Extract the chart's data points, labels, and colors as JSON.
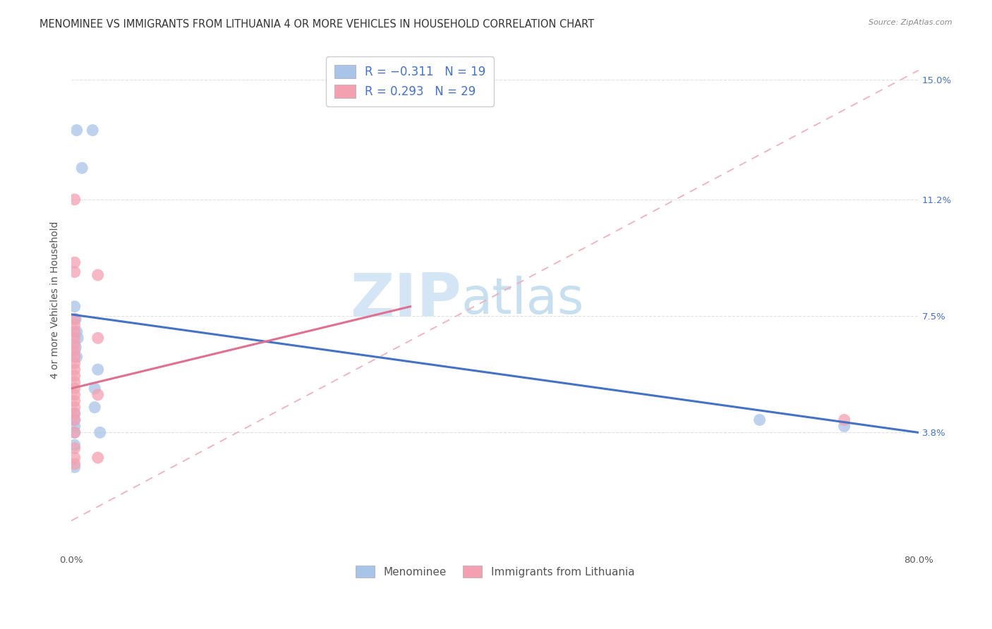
{
  "title": "MENOMINEE VS IMMIGRANTS FROM LITHUANIA 4 OR MORE VEHICLES IN HOUSEHOLD CORRELATION CHART",
  "source": "Source: ZipAtlas.com",
  "ylabel": "4 or more Vehicles in Household",
  "xlim": [
    0.0,
    0.8
  ],
  "ylim": [
    0.0,
    0.16
  ],
  "xticks": [
    0.0,
    0.1,
    0.2,
    0.3,
    0.4,
    0.5,
    0.6,
    0.7,
    0.8
  ],
  "yticks_right": [
    0.038,
    0.075,
    0.112,
    0.15
  ],
  "ytick_labels_right": [
    "3.8%",
    "7.5%",
    "11.2%",
    "15.0%"
  ],
  "blue_color": "#a8c4e8",
  "blue_line_color": "#4472c4",
  "pink_color": "#f4a0b0",
  "pink_line_color": "#e07090",
  "pink_dash_color": "#f0b0bc",
  "blue_points": [
    [
      0.005,
      0.134
    ],
    [
      0.02,
      0.134
    ],
    [
      0.01,
      0.122
    ],
    [
      0.003,
      0.078
    ],
    [
      0.004,
      0.074
    ],
    [
      0.005,
      0.07
    ],
    [
      0.006,
      0.068
    ],
    [
      0.004,
      0.065
    ],
    [
      0.005,
      0.062
    ],
    [
      0.025,
      0.058
    ],
    [
      0.022,
      0.052
    ],
    [
      0.022,
      0.046
    ],
    [
      0.003,
      0.044
    ],
    [
      0.003,
      0.042
    ],
    [
      0.003,
      0.04
    ],
    [
      0.003,
      0.038
    ],
    [
      0.027,
      0.038
    ],
    [
      0.003,
      0.034
    ],
    [
      0.003,
      0.027
    ],
    [
      0.65,
      0.042
    ],
    [
      0.73,
      0.04
    ]
  ],
  "pink_points": [
    [
      0.003,
      0.112
    ],
    [
      0.003,
      0.092
    ],
    [
      0.003,
      0.089
    ],
    [
      0.025,
      0.088
    ],
    [
      0.003,
      0.074
    ],
    [
      0.003,
      0.072
    ],
    [
      0.003,
      0.07
    ],
    [
      0.003,
      0.068
    ],
    [
      0.003,
      0.066
    ],
    [
      0.003,
      0.064
    ],
    [
      0.003,
      0.062
    ],
    [
      0.003,
      0.06
    ],
    [
      0.003,
      0.058
    ],
    [
      0.003,
      0.056
    ],
    [
      0.003,
      0.054
    ],
    [
      0.003,
      0.052
    ],
    [
      0.003,
      0.05
    ],
    [
      0.003,
      0.048
    ],
    [
      0.003,
      0.046
    ],
    [
      0.003,
      0.044
    ],
    [
      0.003,
      0.042
    ],
    [
      0.003,
      0.038
    ],
    [
      0.025,
      0.068
    ],
    [
      0.025,
      0.05
    ],
    [
      0.73,
      0.042
    ],
    [
      0.003,
      0.033
    ],
    [
      0.003,
      0.03
    ],
    [
      0.003,
      0.028
    ],
    [
      0.025,
      0.03
    ]
  ],
  "blue_line": {
    "x": [
      0.0,
      0.8
    ],
    "y": [
      0.0755,
      0.038
    ]
  },
  "pink_line": {
    "x": [
      0.0,
      0.32
    ],
    "y": [
      0.052,
      0.078
    ]
  },
  "pink_dash_line": {
    "x": [
      0.0,
      0.8
    ],
    "y": [
      0.01,
      0.153
    ]
  },
  "watermark_zip": "ZIP",
  "watermark_atlas": "atlas",
  "watermark_color_zip": "#d4e6f5",
  "watermark_color_atlas": "#c8dff0",
  "background_color": "#ffffff",
  "grid_color": "#e0e0e0",
  "title_fontsize": 10.5,
  "axis_label_fontsize": 10,
  "tick_fontsize": 9.5
}
